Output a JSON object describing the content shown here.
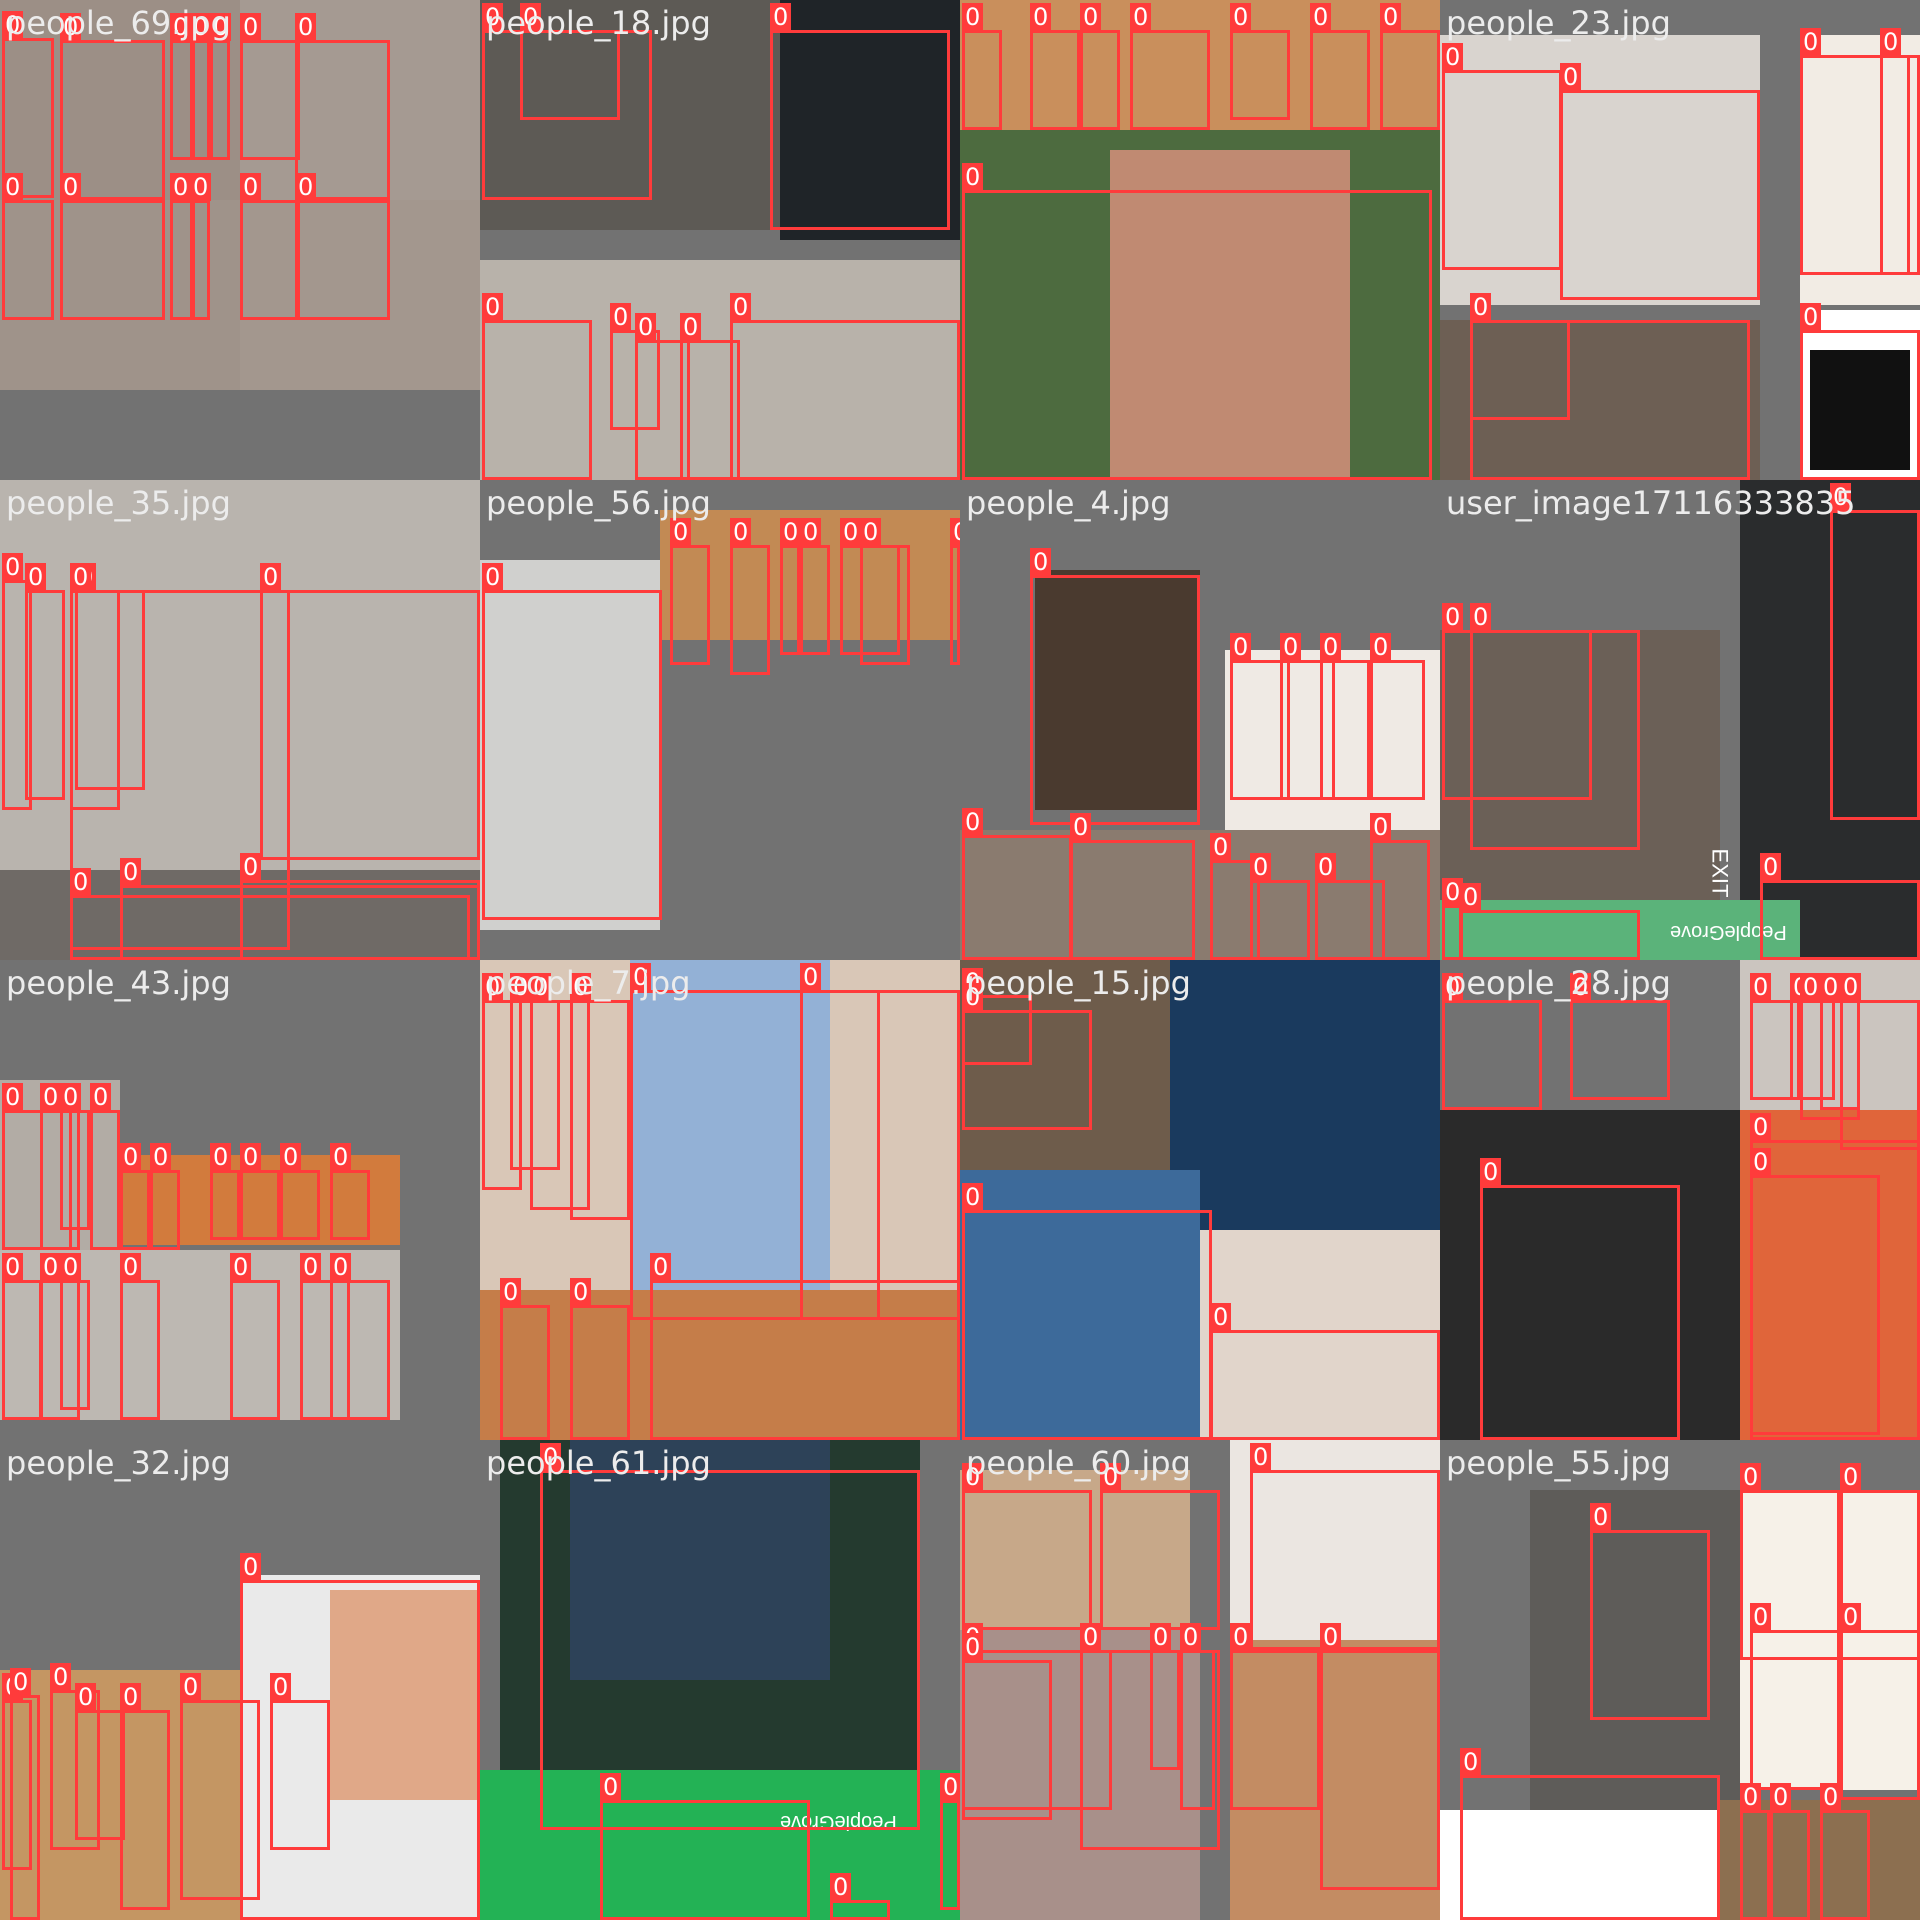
{
  "grid": {
    "columns": 4,
    "rows": 4
  },
  "box_color": "#ff3b3b",
  "label_color": "#ffffff",
  "background_color": "#727272",
  "class_label": "0",
  "tiles": [
    {
      "filename": "people_69.jpg"
    },
    {
      "filename": "people_18.jpg"
    },
    {
      "filename": ""
    },
    {
      "filename": "people_23.jpg"
    },
    {
      "filename": "people_35.jpg"
    },
    {
      "filename": "people_56.jpg"
    },
    {
      "filename": "people_4.jpg"
    },
    {
      "filename": "user_image17116333835"
    },
    {
      "filename": "people_43.jpg"
    },
    {
      "filename": "people_7.jpg"
    },
    {
      "filename": "people_15.jpg"
    },
    {
      "filename": "people_28.jpg"
    },
    {
      "filename": "people_32.jpg"
    },
    {
      "filename": "people_61.jpg"
    },
    {
      "filename": "people_60.jpg"
    },
    {
      "filename": "people_55.jpg"
    }
  ],
  "watermarks": [
    "PeopleGrove",
    "PeopleGrove"
  ],
  "signage": [
    "EXIT"
  ]
}
